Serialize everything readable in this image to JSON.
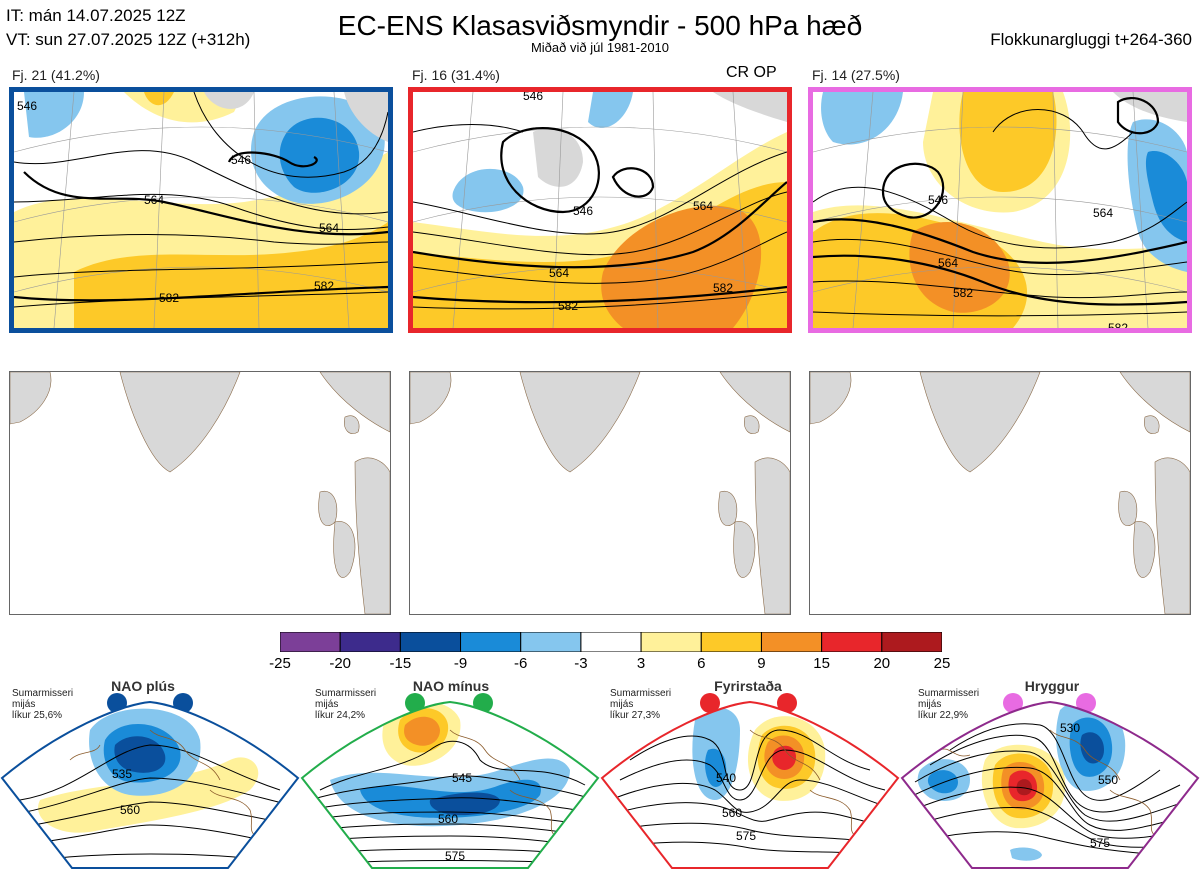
{
  "header": {
    "it_line": "IT: mán 14.07.2025 12Z",
    "vt_line": "VT: sun 27.07.2025 12Z  (+312h)",
    "title": "EC-ENS Klasasviðsmyndir - 500 hPa hæð",
    "subtitle": "Miðað við júl 1981-2010",
    "window": "Flokkunargluggi t+264-360"
  },
  "clusters": [
    {
      "label": "Fj. 21 (41.2%)",
      "border_color": "#0a4f9c",
      "contours": [
        "546",
        "564",
        "582",
        "564",
        "546",
        "582"
      ]
    },
    {
      "label": "Fj. 16 (31.4%)",
      "border_color": "#e8262b",
      "extra": "CR OP",
      "contours": [
        "546",
        "564",
        "582",
        "546",
        "582",
        "564"
      ]
    },
    {
      "label": "Fj. 14 (27.5%)",
      "border_color": "#e86be2",
      "contours": [
        "546",
        "564",
        "582",
        "564",
        "582"
      ]
    }
  ],
  "colorbar": {
    "ticks": [
      "-25",
      "-20",
      "-15",
      "-9",
      "-6",
      "-3",
      "3",
      "6",
      "9",
      "15",
      "20",
      "25"
    ],
    "colors": [
      "#7c3f98",
      "#3d2b8c",
      "#0a4f9c",
      "#1a8bd8",
      "#85c6ee",
      "#ffffff",
      "#fff19a",
      "#fdc928",
      "#f39026",
      "#e8262b",
      "#ad1a1e"
    ]
  },
  "regimes": [
    {
      "name": "NAO plús",
      "season": "Sumarmisseri",
      "avg": "mijás",
      "prob": "líkur 25,6%",
      "color": "#0a4f9c",
      "contours": [
        "535",
        "560"
      ]
    },
    {
      "name": "NAO mínus",
      "season": "Sumarmisseri",
      "avg": "mijás",
      "prob": "líkur 24,2%",
      "color": "#22ad4b",
      "contours": [
        "545",
        "560",
        "575"
      ]
    },
    {
      "name": "Fyrirstaða",
      "season": "Sumarmisseri",
      "avg": "mijás",
      "prob": "líkur 27,3%",
      "color": "#e8262b",
      "contours": [
        "540",
        "560",
        "575"
      ]
    },
    {
      "name": "Hryggur",
      "season": "Sumarmisseri",
      "avg": "mijás",
      "prob": "líkur 22,9%",
      "color": "#e86be2",
      "border_color": "#8e2a8c",
      "contours": [
        "530",
        "550",
        "575"
      ]
    }
  ]
}
